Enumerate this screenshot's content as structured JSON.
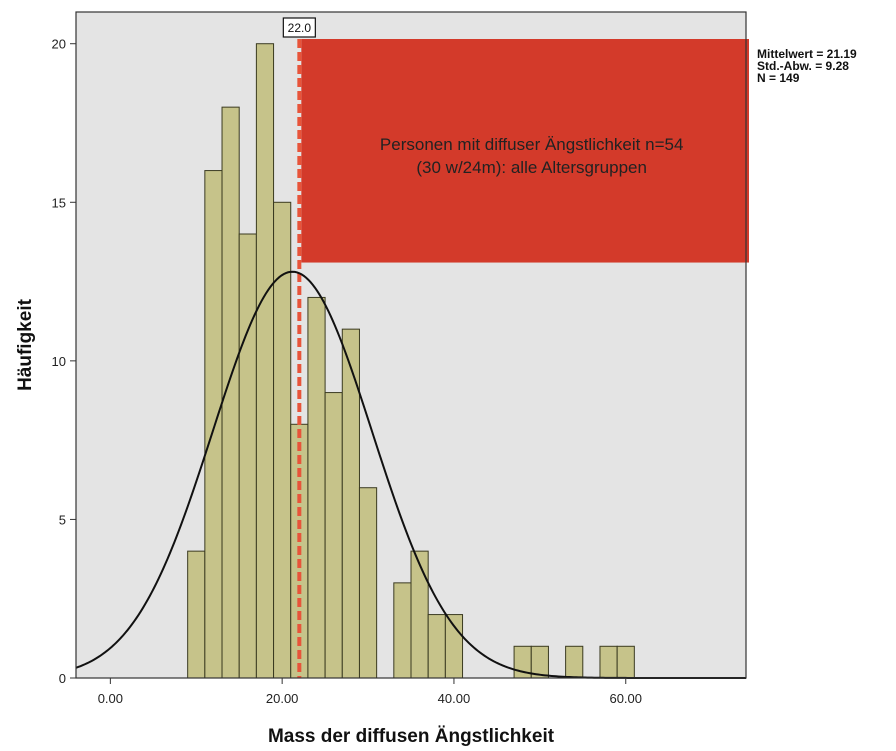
{
  "chart_data": {
    "type": "bar",
    "xlabel": "Mass der diffusen Ängstlichkeit",
    "ylabel": "Häufigkeit",
    "xlim": [
      -4,
      74
    ],
    "ylim": [
      0,
      21
    ],
    "x_ticks": [
      {
        "value": 0,
        "label": "0.00"
      },
      {
        "value": 20,
        "label": "20.00"
      },
      {
        "value": 40,
        "label": "40.00"
      },
      {
        "value": 60,
        "label": "60.00"
      }
    ],
    "y_ticks": [
      {
        "value": 0,
        "label": "0"
      },
      {
        "value": 5,
        "label": "5"
      },
      {
        "value": 10,
        "label": "10"
      },
      {
        "value": 15,
        "label": "15"
      },
      {
        "value": 20,
        "label": "20"
      }
    ],
    "bin_width": 2,
    "bins": [
      {
        "start": 9,
        "count": 4
      },
      {
        "start": 11,
        "count": 16
      },
      {
        "start": 13,
        "count": 18
      },
      {
        "start": 15,
        "count": 14
      },
      {
        "start": 17,
        "count": 20
      },
      {
        "start": 19,
        "count": 15
      },
      {
        "start": 21,
        "count": 8
      },
      {
        "start": 23,
        "count": 12
      },
      {
        "start": 25,
        "count": 9
      },
      {
        "start": 27,
        "count": 11
      },
      {
        "start": 29,
        "count": 6
      },
      {
        "start": 33,
        "count": 3
      },
      {
        "start": 35,
        "count": 4
      },
      {
        "start": 37,
        "count": 2
      },
      {
        "start": 39,
        "count": 2
      },
      {
        "start": 47,
        "count": 1
      },
      {
        "start": 49,
        "count": 1
      },
      {
        "start": 53,
        "count": 1
      },
      {
        "start": 57,
        "count": 1
      },
      {
        "start": 59,
        "count": 1
      }
    ],
    "normal_curve": {
      "mean": 21.19,
      "sd": 9.28,
      "n": 149
    },
    "stats_text": [
      "Mittelwert = 21.19",
      "Std.-Abw. = 9.28",
      "N = 149"
    ],
    "marker": {
      "value": 22.0,
      "label": "22.0",
      "color": "#e8543a"
    },
    "highlight": {
      "x_from": 22.0,
      "y_from": 13.1,
      "color": "#d33a2a",
      "lines": [
        "Personen mit diffuser Ängstlichkeit n=54",
        "(30 w/24m): alle Altersgruppen"
      ]
    },
    "colors": {
      "plot_background": "#e4e4e4",
      "bar_fill": "#c6c38a",
      "bar_stroke": "#3a3a20",
      "curve": "#111111"
    },
    "grid": false,
    "legend": "none"
  }
}
